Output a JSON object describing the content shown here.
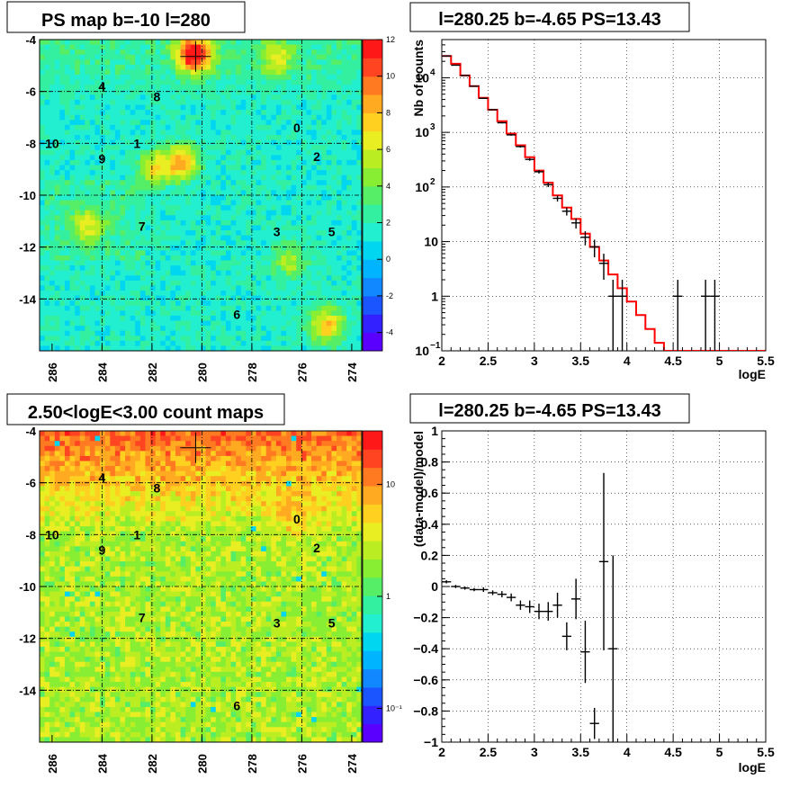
{
  "chart_data": [
    {
      "type": "heatmap",
      "title": "PS map b=-10 l=280",
      "x_ticks": [
        "286",
        "284",
        "282",
        "280",
        "278",
        "276",
        "274"
      ],
      "y_ticks": [
        "-4",
        "-6",
        "-8",
        "-10",
        "-12",
        "-14"
      ],
      "xlim": [
        286.5,
        273.6
      ],
      "ylim": [
        -16,
        -4
      ],
      "colorbar": {
        "scale": "linear",
        "range": [
          -5,
          12
        ],
        "ticks": [
          "12",
          "10",
          "8",
          "6",
          "4",
          "2",
          "0",
          "-2",
          "-4"
        ]
      },
      "marker": {
        "l": 280.25,
        "b": -4.65
      },
      "hotspots": [
        {
          "l": 280.3,
          "b": -4.6,
          "v": 11
        },
        {
          "l": 280.8,
          "b": -8.7,
          "v": 7
        },
        {
          "l": 281.9,
          "b": -9.0,
          "v": 5
        },
        {
          "l": 275.0,
          "b": -15.0,
          "v": 6
        },
        {
          "l": 284.5,
          "b": -11.2,
          "v": 4
        },
        {
          "l": 277.0,
          "b": -4.8,
          "v": 4
        },
        {
          "l": 276.5,
          "b": -12.5,
          "v": 3.5
        }
      ],
      "sources": [
        {
          "label": "0",
          "l": 276.2,
          "b": -7.4
        },
        {
          "label": "1",
          "l": 282.6,
          "b": -8.0
        },
        {
          "label": "2",
          "l": 275.4,
          "b": -8.5
        },
        {
          "label": "3",
          "l": 277.0,
          "b": -11.4
        },
        {
          "label": "4",
          "l": 284.0,
          "b": -5.8
        },
        {
          "label": "5",
          "l": 274.8,
          "b": -11.4
        },
        {
          "label": "6",
          "l": 278.6,
          "b": -14.6
        },
        {
          "label": "7",
          "l": 282.4,
          "b": -11.2
        },
        {
          "label": "8",
          "l": 281.8,
          "b": -6.2
        },
        {
          "label": "9",
          "l": 284.0,
          "b": -8.6
        },
        {
          "label": "10",
          "l": 286.0,
          "b": -8.0
        }
      ]
    },
    {
      "type": "line",
      "title": "l=280.25 b=-4.65 PS=13.43",
      "xlabel": "logE",
      "ylabel": "Nb of counts",
      "xlim": [
        2,
        5.5
      ],
      "ylim": [
        0.1,
        50000
      ],
      "yscale": "log",
      "grid": true,
      "x_ticks": [
        "2",
        "2.5",
        "3",
        "3.5",
        "4",
        "4.5",
        "5",
        "5.5"
      ],
      "y_ticks": [
        {
          "v": 0.1,
          "base": "10",
          "exp": "−1"
        },
        {
          "v": 1,
          "base": "1",
          "exp": ""
        },
        {
          "v": 10,
          "base": "10",
          "exp": ""
        },
        {
          "v": 100,
          "base": "10",
          "exp": "2"
        },
        {
          "v": 1000,
          "base": "10",
          "exp": "3"
        },
        {
          "v": 10000,
          "base": "10",
          "exp": "4"
        }
      ],
      "model": {
        "edges": [
          2,
          2.1,
          2.2,
          2.3,
          2.4,
          2.5,
          2.6,
          2.7,
          2.8,
          2.9,
          3.0,
          3.1,
          3.2,
          3.3,
          3.4,
          3.5,
          3.6,
          3.7,
          3.8,
          3.9,
          4.0,
          4.1,
          4.2,
          4.3,
          4.4,
          4.5,
          4.6,
          4.7,
          4.8,
          4.9,
          5.0,
          5.5
        ],
        "values": [
          25000,
          18000,
          11000,
          7000,
          4300,
          2600,
          1600,
          950,
          580,
          350,
          200,
          120,
          70,
          42,
          26,
          14,
          8,
          4.5,
          2.5,
          1.4,
          0.8,
          0.45,
          0.25,
          0.14,
          0.1,
          0.1,
          0.1,
          0.1,
          0.1,
          0.1,
          0.1
        ]
      },
      "points": [
        {
          "x": 2.05,
          "y": 25000
        },
        {
          "x": 2.15,
          "y": 17000
        },
        {
          "x": 2.25,
          "y": 11000
        },
        {
          "x": 2.35,
          "y": 7000
        },
        {
          "x": 2.45,
          "y": 4200
        },
        {
          "x": 2.55,
          "y": 2600
        },
        {
          "x": 2.65,
          "y": 1500
        },
        {
          "x": 2.75,
          "y": 900
        },
        {
          "x": 2.85,
          "y": 550
        },
        {
          "x": 2.95,
          "y": 320
        },
        {
          "x": 3.05,
          "y": 190
        },
        {
          "x": 3.15,
          "y": 110
        },
        {
          "x": 3.25,
          "y": 62
        },
        {
          "x": 3.35,
          "y": 36
        },
        {
          "x": 3.45,
          "y": 22
        },
        {
          "x": 3.55,
          "y": 12
        },
        {
          "x": 3.65,
          "y": 8
        },
        {
          "x": 3.75,
          "y": 4
        },
        {
          "x": 3.85,
          "y": 1
        },
        {
          "x": 3.95,
          "y": 1
        },
        {
          "x": 4.55,
          "y": 1
        },
        {
          "x": 4.85,
          "y": 1
        },
        {
          "x": 4.95,
          "y": 1
        }
      ],
      "model_color": "#ff0000"
    },
    {
      "type": "heatmap",
      "title": "2.50<logE<3.00 count maps",
      "x_ticks": [
        "286",
        "284",
        "282",
        "280",
        "278",
        "276",
        "274"
      ],
      "y_ticks": [
        "-4",
        "-6",
        "-8",
        "-10",
        "-12",
        "-14"
      ],
      "xlim": [
        286.5,
        273.6
      ],
      "ylim": [
        -16,
        -4
      ],
      "colorbar": {
        "scale": "log",
        "range": [
          0.05,
          30
        ],
        "ticks": [
          "10",
          "1",
          "10⁻¹"
        ]
      },
      "marker": {
        "l": 280.25,
        "b": -4.65
      },
      "sources": [
        {
          "label": "0",
          "l": 276.2,
          "b": -7.4
        },
        {
          "label": "1",
          "l": 282.6,
          "b": -8.0
        },
        {
          "label": "2",
          "l": 275.4,
          "b": -8.5
        },
        {
          "label": "3",
          "l": 277.0,
          "b": -11.4
        },
        {
          "label": "4",
          "l": 284.0,
          "b": -5.8
        },
        {
          "label": "5",
          "l": 274.8,
          "b": -11.4
        },
        {
          "label": "6",
          "l": 278.6,
          "b": -14.6
        },
        {
          "label": "7",
          "l": 282.4,
          "b": -11.2
        },
        {
          "label": "8",
          "l": 281.8,
          "b": -6.2
        },
        {
          "label": "9",
          "l": 284.0,
          "b": -8.6
        },
        {
          "label": "10",
          "l": 286.0,
          "b": -8.0
        }
      ]
    },
    {
      "type": "scatter",
      "title": "l=280.25 b=-4.65 PS=13.43",
      "xlabel": "logE",
      "ylabel": "(data-model)/model",
      "xlim": [
        2,
        5.5
      ],
      "ylim": [
        -1,
        1
      ],
      "grid": true,
      "x_ticks": [
        "2",
        "2.5",
        "3",
        "3.5",
        "4",
        "4.5",
        "5",
        "5.5"
      ],
      "y_ticks": [
        "1",
        "0.8",
        "0.6",
        "0.4",
        "0.2",
        "0",
        "−0.2",
        "−0.4",
        "−0.6",
        "−0.8",
        "−1"
      ],
      "points": [
        {
          "x": 2.05,
          "y": 0.03,
          "e": 0.01
        },
        {
          "x": 2.15,
          "y": 0.0,
          "e": 0.01
        },
        {
          "x": 2.25,
          "y": -0.01,
          "e": 0.01
        },
        {
          "x": 2.35,
          "y": -0.02,
          "e": 0.01
        },
        {
          "x": 2.45,
          "y": -0.02,
          "e": 0.015
        },
        {
          "x": 2.55,
          "y": -0.04,
          "e": 0.015
        },
        {
          "x": 2.65,
          "y": -0.05,
          "e": 0.02
        },
        {
          "x": 2.75,
          "y": -0.07,
          "e": 0.025
        },
        {
          "x": 2.85,
          "y": -0.12,
          "e": 0.03
        },
        {
          "x": 2.95,
          "y": -0.13,
          "e": 0.04
        },
        {
          "x": 3.05,
          "y": -0.16,
          "e": 0.05
        },
        {
          "x": 3.15,
          "y": -0.16,
          "e": 0.06
        },
        {
          "x": 3.25,
          "y": -0.12,
          "e": 0.08
        },
        {
          "x": 3.35,
          "y": -0.32,
          "e": 0.09
        },
        {
          "x": 3.45,
          "y": -0.08,
          "e": 0.13
        },
        {
          "x": 3.55,
          "y": -0.42,
          "e": 0.2
        },
        {
          "x": 3.65,
          "y": -0.88,
          "e": 0.1
        },
        {
          "x": 3.75,
          "y": 0.16,
          "e": 0.57
        },
        {
          "x": 3.85,
          "y": -0.4,
          "e": 0.6
        }
      ]
    }
  ]
}
